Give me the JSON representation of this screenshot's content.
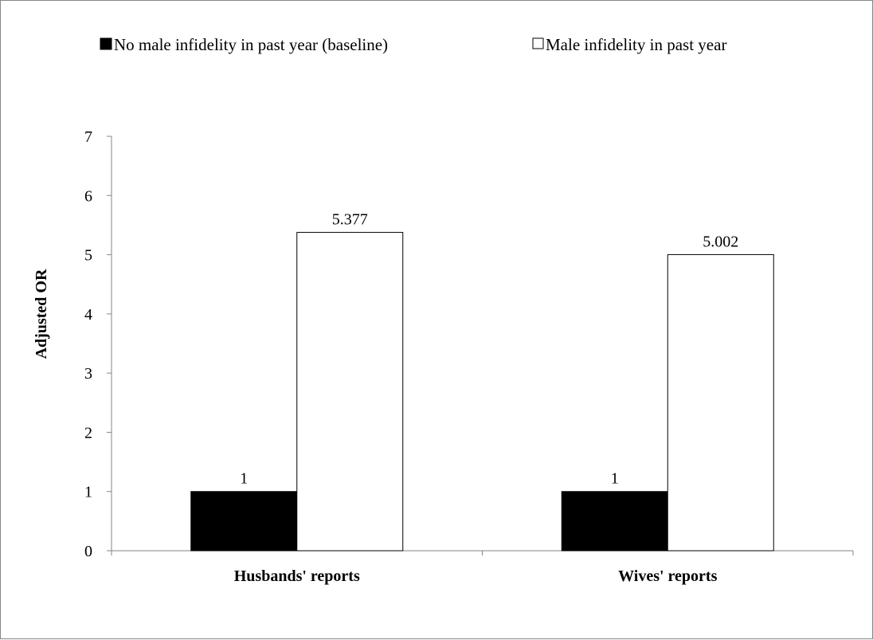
{
  "chart_data": {
    "type": "bar",
    "categories": [
      "Husbands' reports",
      "Wives' reports"
    ],
    "series": [
      {
        "name": "No male infidelity in past year (baseline)",
        "values": [
          1,
          1
        ],
        "color": "#000000"
      },
      {
        "name": "Male infidelity in past year",
        "values": [
          5.377,
          5.002
        ],
        "color": "#ffffff"
      }
    ],
    "data_labels": [
      [
        "1",
        "1"
      ],
      [
        "5.377",
        "5.002"
      ]
    ],
    "title": "",
    "xlabel": "",
    "ylabel": "Adjusted OR",
    "ylim": [
      0,
      7
    ],
    "yticks": [
      0,
      1,
      2,
      3,
      4,
      5,
      6,
      7
    ],
    "grid": false,
    "legend_position": "top"
  }
}
